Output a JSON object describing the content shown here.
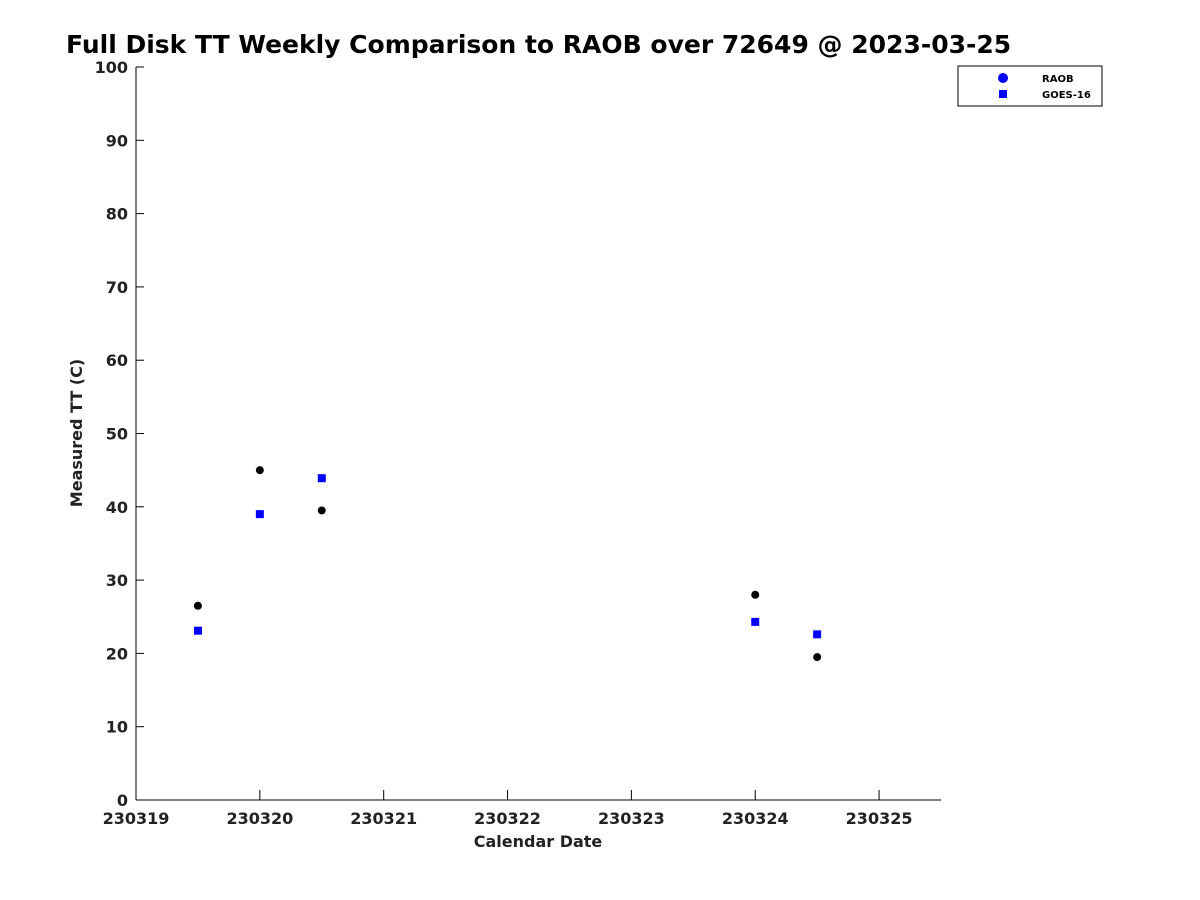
{
  "chart_data": {
    "type": "scatter",
    "title": "Full Disk TT Weekly Comparison to RAOB over 72649 @ 2023-03-25",
    "xlabel": "Calendar Date",
    "ylabel": "Measured TT (C)",
    "xlim": [
      230319,
      230325.5
    ],
    "ylim": [
      0,
      100
    ],
    "x_ticks": [
      230319,
      230320,
      230321,
      230322,
      230323,
      230324,
      230325
    ],
    "x_tick_labels": [
      "230319",
      "230320",
      "230321",
      "230322",
      "230323",
      "230324",
      "230325"
    ],
    "y_ticks": [
      0,
      10,
      20,
      30,
      40,
      50,
      60,
      70,
      80,
      90,
      100
    ],
    "y_tick_labels": [
      "0",
      "10",
      "20",
      "30",
      "40",
      "50",
      "60",
      "70",
      "80",
      "90",
      "100"
    ],
    "grid": false,
    "legend_position": "top-right",
    "series": [
      {
        "name": "RAOB",
        "marker": "circle",
        "legend_color": "#0000ff",
        "point_color": "#000000",
        "points": [
          {
            "x": 230319.5,
            "y": 26.5
          },
          {
            "x": 230320.0,
            "y": 45.0
          },
          {
            "x": 230320.5,
            "y": 39.5
          },
          {
            "x": 230324.0,
            "y": 28.0
          },
          {
            "x": 230324.5,
            "y": 19.5
          }
        ]
      },
      {
        "name": "GOES-16",
        "marker": "square",
        "legend_color": "#0000ff",
        "point_color": "#0000ff",
        "points": [
          {
            "x": 230319.5,
            "y": 23.1
          },
          {
            "x": 230320.0,
            "y": 39.0
          },
          {
            "x": 230320.5,
            "y": 43.9
          },
          {
            "x": 230324.0,
            "y": 24.3
          },
          {
            "x": 230324.5,
            "y": 22.6
          }
        ]
      }
    ]
  }
}
